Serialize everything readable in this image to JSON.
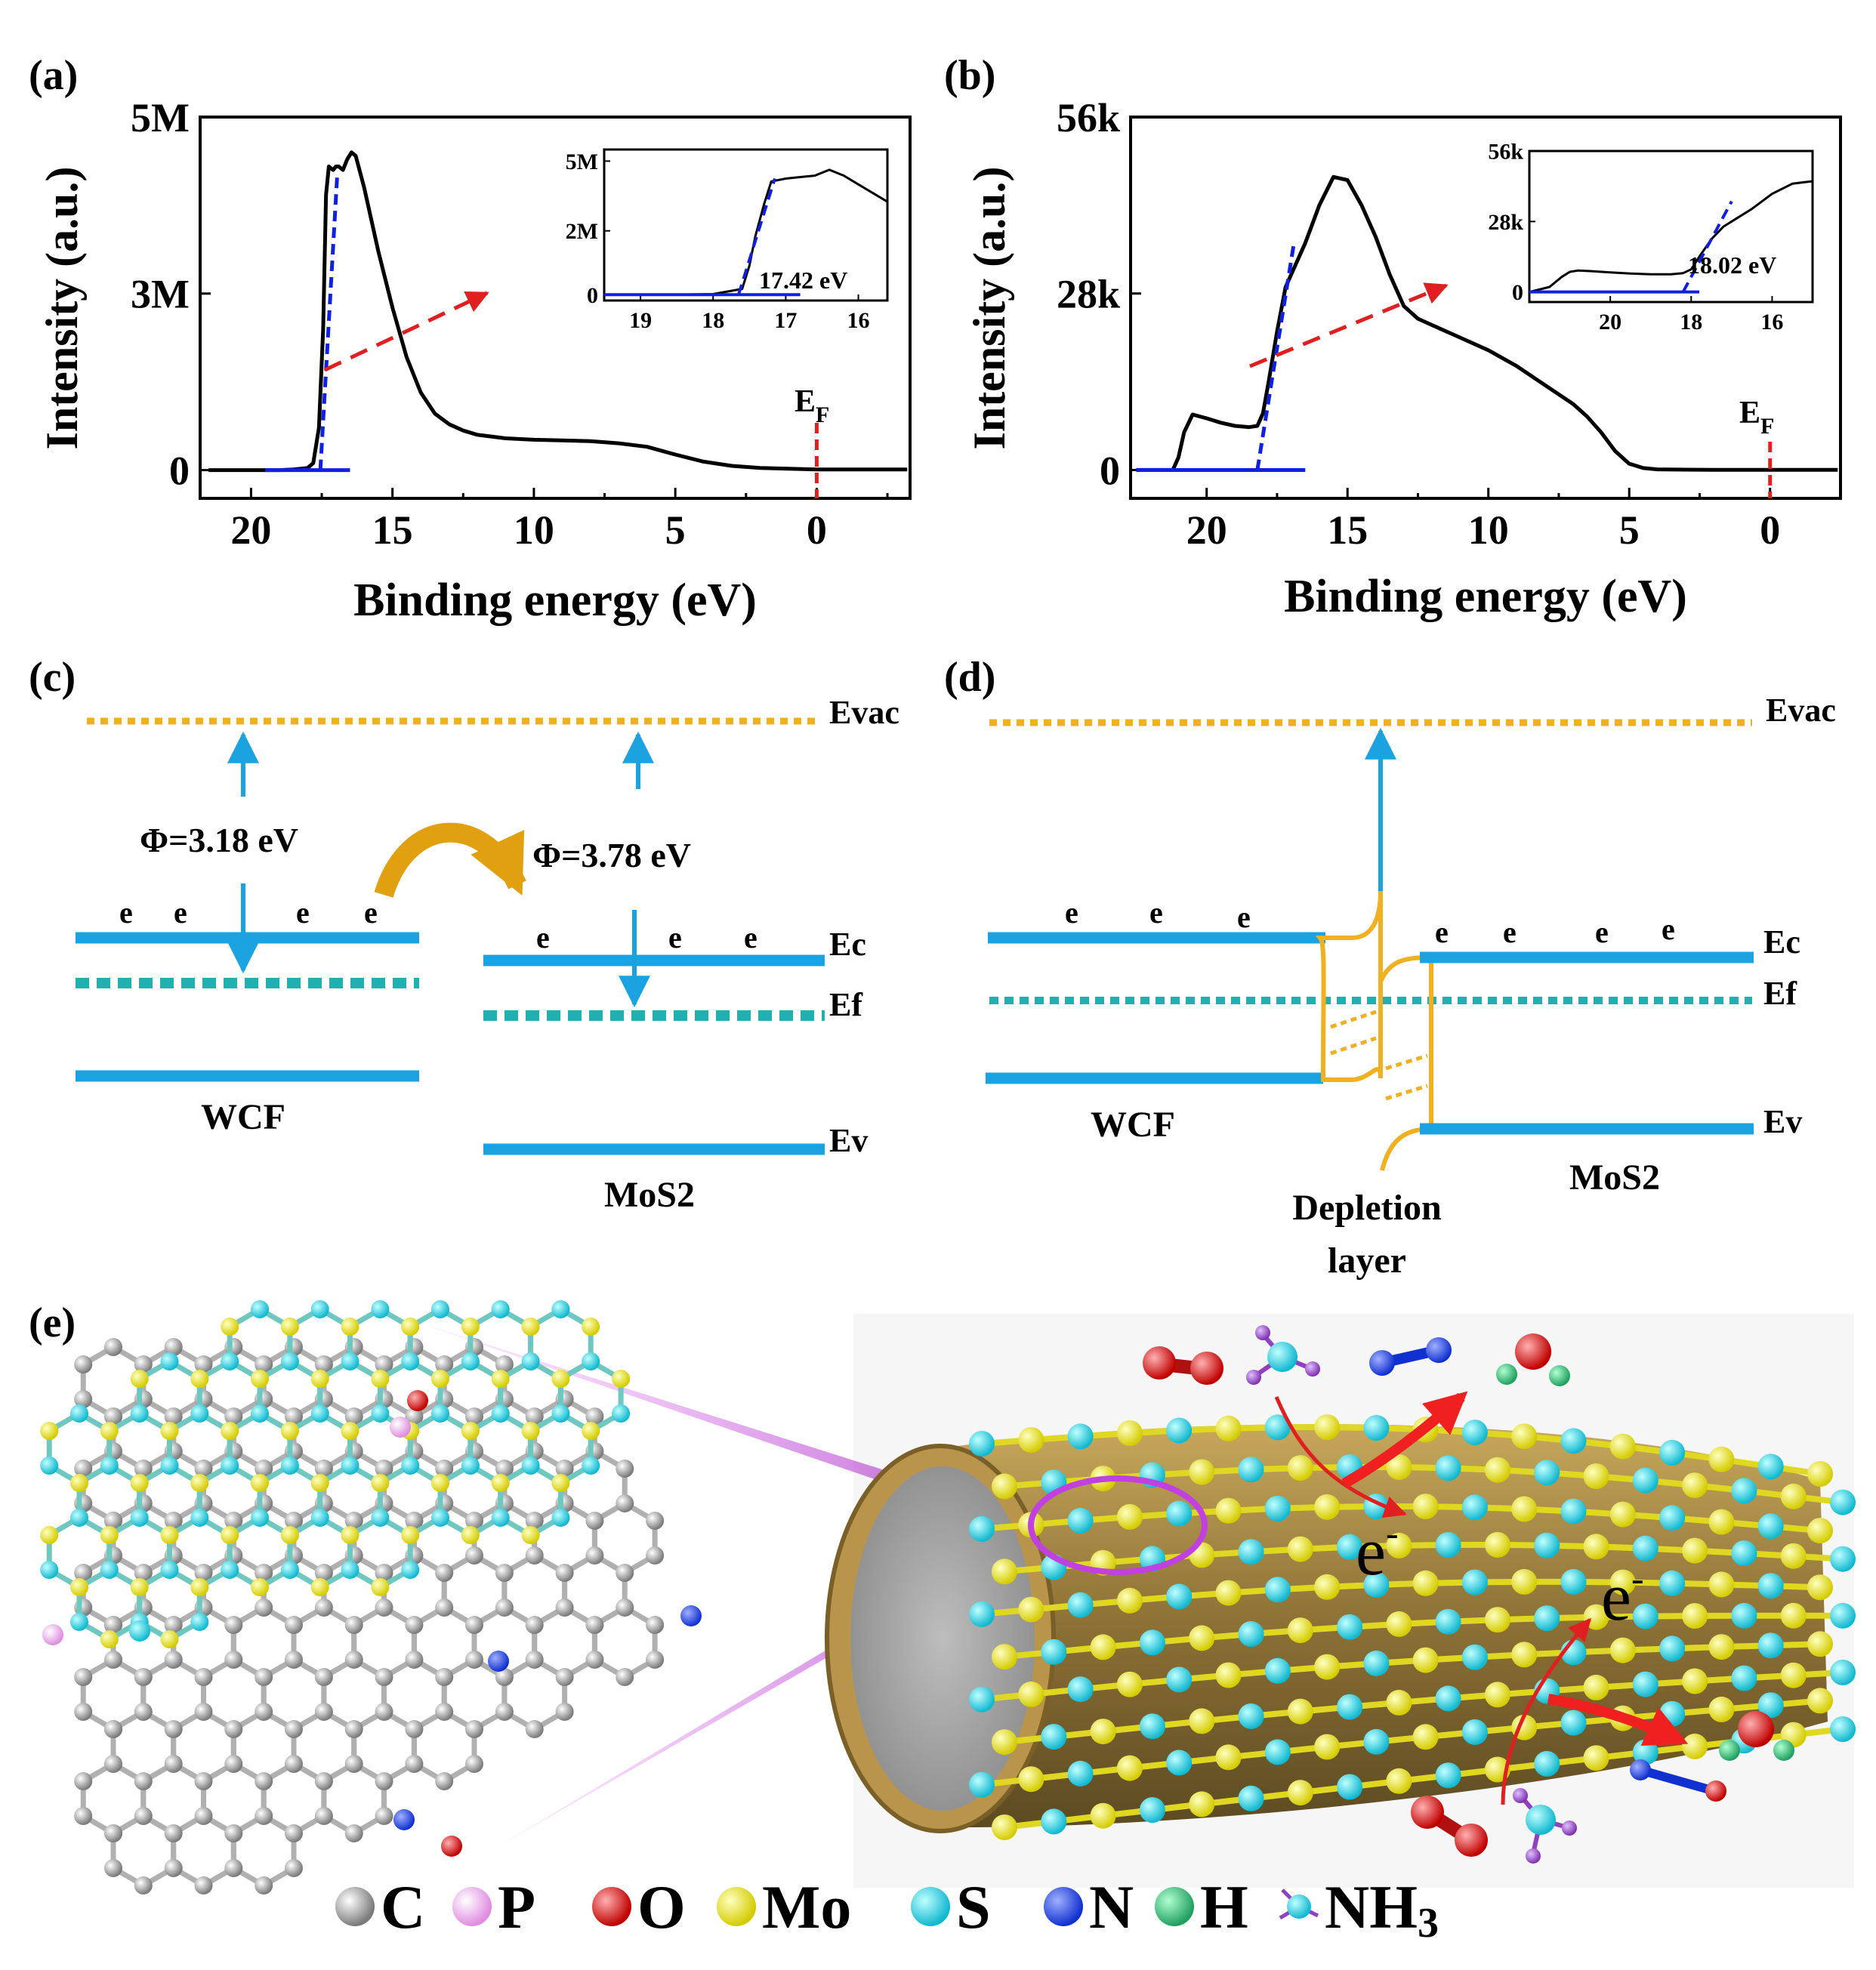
{
  "panels": {
    "a": "(a)",
    "b": "(b)",
    "c": "(c)",
    "d": "(d)",
    "e": "(e)"
  },
  "chart_data": [
    {
      "type": "line",
      "panel": "a",
      "xlabel": "Binding energy (eV)",
      "ylabel": "Intensity (a.u.)",
      "xlim": [
        21.8,
        -3.3
      ],
      "ylim": [
        -0.4,
        5
      ],
      "x_ticks": [
        20,
        15,
        10,
        5,
        0
      ],
      "y_ticks": [
        {
          "v": 0,
          "label": "0"
        },
        {
          "v": 2.5,
          "label": "3M"
        },
        {
          "v": 5,
          "label": "5M"
        }
      ],
      "fermi_label_main": "E",
      "fermi_label_sub": "F",
      "series": [
        {
          "x": [
            21.5,
            20,
            19,
            18.5,
            18,
            17.8,
            17.6,
            17.45,
            17.35,
            17.25,
            17.1,
            17.0,
            16.9,
            16.75,
            16.6,
            16.45,
            16.3,
            16.0,
            15.5,
            15.0,
            14.5,
            14.0,
            13.5,
            13.0,
            12.5,
            12.0,
            11.0,
            10.0,
            9.0,
            8.0,
            7.0,
            6.0,
            5.0,
            4.0,
            3.0,
            2.0,
            1.0,
            0,
            -1,
            -2,
            -3.2
          ],
          "y": [
            0,
            0,
            0,
            0.01,
            0.03,
            0.1,
            0.6,
            2.0,
            3.9,
            4.3,
            4.25,
            4.3,
            4.3,
            4.25,
            4.4,
            4.5,
            4.45,
            4.0,
            3.1,
            2.3,
            1.6,
            1.1,
            0.8,
            0.65,
            0.56,
            0.5,
            0.45,
            0.43,
            0.42,
            0.41,
            0.38,
            0.33,
            0.22,
            0.12,
            0.06,
            0.03,
            0.02,
            0.01,
            0.01,
            0.01,
            0.01
          ]
        }
      ],
      "fit_line": {
        "x": [
          17.55,
          16.95
        ],
        "y": [
          0,
          4.2
        ]
      },
      "baseline": {
        "x": [
          19.5,
          16.5
        ],
        "y": [
          0,
          0
        ]
      },
      "inset": {
        "xlim": [
          19.5,
          15.6
        ],
        "ylim": [
          -0.2,
          5
        ],
        "x_ticks": [
          19,
          18,
          17,
          16
        ],
        "y_ticks": [
          {
            "v": 0,
            "label": "0"
          },
          {
            "v": 2.2,
            "label": "2M"
          },
          {
            "v": 4.6,
            "label": "5M"
          }
        ],
        "annotation": "17.42 eV",
        "series": {
          "x": [
            19.5,
            19,
            18.5,
            18.0,
            17.6,
            17.5,
            17.42,
            17.3,
            17.2,
            17.0,
            16.8,
            16.6,
            16.4,
            16.2,
            16.0,
            15.8,
            15.6
          ],
          "y": [
            0,
            0,
            0,
            0.02,
            0.2,
            1.0,
            2.0,
            3.1,
            3.9,
            4.0,
            4.05,
            4.1,
            4.3,
            4.1,
            3.8,
            3.5,
            3.2
          ]
        },
        "fit_line": {
          "x": [
            17.65,
            17.15
          ],
          "y": [
            0,
            4.0
          ]
        },
        "baseline": {
          "x": [
            19.5,
            16.8
          ],
          "y": [
            0,
            0
          ]
        }
      }
    },
    {
      "type": "line",
      "panel": "b",
      "xlabel": "Binding energy (eV)",
      "ylabel": "Intensity (a.u.)",
      "xlim": [
        22.7,
        -2.5
      ],
      "ylim": [
        -4.5,
        56
      ],
      "x_ticks": [
        20,
        15,
        10,
        5,
        0
      ],
      "y_ticks": [
        {
          "v": 0,
          "label": "0"
        },
        {
          "v": 28,
          "label": "28k"
        },
        {
          "v": 56,
          "label": "56k"
        }
      ],
      "fermi_label_main": "E",
      "fermi_label_sub": "F",
      "series": [
        {
          "x": [
            22.5,
            21.5,
            21.2,
            21.0,
            20.8,
            20.5,
            20.0,
            19.5,
            19.0,
            18.5,
            18.2,
            18.0,
            17.8,
            17.5,
            17.2,
            17.0,
            16.5,
            16.0,
            15.5,
            15.0,
            14.5,
            14.0,
            13.5,
            13.0,
            12.5,
            12.0,
            11.0,
            10.0,
            9.0,
            8.0,
            7.0,
            6.5,
            6.0,
            5.5,
            5.0,
            4.5,
            4.0,
            3.0,
            2.0,
            1.0,
            0,
            -1,
            -2.4
          ],
          "y": [
            0,
            0,
            0,
            2,
            6,
            8.8,
            8.2,
            7.5,
            7.0,
            6.8,
            7.0,
            9.0,
            14,
            22,
            29,
            31,
            36,
            42,
            46.5,
            46,
            42,
            37,
            31,
            26,
            24,
            23,
            21,
            19,
            16.5,
            13.5,
            10.5,
            8.5,
            6.0,
            3.0,
            1.0,
            0.3,
            0.1,
            0.05,
            0.03,
            0.02,
            0.02,
            0.02,
            0.02
          ]
        }
      ],
      "fit_line": {
        "x": [
          18.2,
          16.9
        ],
        "y": [
          0,
          36
        ]
      },
      "baseline": {
        "x": [
          22.5,
          16.5
        ],
        "y": [
          0,
          0
        ]
      },
      "inset": {
        "xlim": [
          22,
          15
        ],
        "ylim": [
          -4,
          56
        ],
        "x_ticks": [
          20,
          18,
          16
        ],
        "y_ticks": [
          {
            "v": 0,
            "label": "0"
          },
          {
            "v": 28,
            "label": "28k"
          },
          {
            "v": 56,
            "label": "56k"
          }
        ],
        "annotation": "18.02 eV",
        "series": {
          "x": [
            22,
            21.5,
            21.2,
            21.0,
            20.8,
            20.5,
            20.0,
            19.5,
            19.0,
            18.5,
            18.2,
            18.0,
            17.8,
            17.5,
            17.2,
            17.0,
            16.5,
            16.0,
            15.5,
            15.0
          ],
          "y": [
            0,
            2,
            6,
            8,
            8.5,
            8.3,
            7.8,
            7.3,
            7.0,
            7.0,
            7.5,
            9.0,
            14,
            21,
            26,
            28,
            33,
            39,
            43,
            44
          ]
        },
        "fit_line": {
          "x": [
            18.2,
            17.0
          ],
          "y": [
            0,
            36
          ]
        },
        "baseline": {
          "x": [
            22,
            17.8
          ],
          "y": [
            0,
            0
          ]
        }
      }
    }
  ],
  "band_c": {
    "evac": "Evac",
    "phi_wcf": "Φ=3.18 eV",
    "phi_mos2": "Φ=3.78 eV",
    "electron": "e",
    "ec": "Ec",
    "ef": "Ef",
    "ev": "Ev",
    "wcf": "WCF",
    "mos2": "MoS2"
  },
  "band_d": {
    "evac": "Evac",
    "electron": "e",
    "ec": "Ec",
    "ef": "Ef",
    "ev": "Ev",
    "wcf": "WCF",
    "mos2": "MoS2",
    "depletion_1": "Depletion",
    "depletion_2": "layer"
  },
  "scheme_e": {
    "electron_label": "e",
    "electron_sup": "-",
    "legend": [
      {
        "label": "C",
        "color": "#888888"
      },
      {
        "label": "P",
        "color": "#e8a0e8"
      },
      {
        "label": "O",
        "color": "#e02020"
      },
      {
        "label": "Mo",
        "color": "#e8e020"
      },
      {
        "label": "S",
        "color": "#30d0e0"
      },
      {
        "label": "N",
        "color": "#2040e0"
      },
      {
        "label": "H",
        "color": "#30c070"
      },
      {
        "label": "NH",
        "color": "#9040c0",
        "sub": "3"
      }
    ]
  },
  "colors": {
    "band_blue": "#1aa3e0",
    "evac_orange": "#f0b020",
    "fermi_teal": "#20b0b0",
    "fit_blue": "#1020e0",
    "arrow_red": "#e02020",
    "curve_black": "#000000",
    "tube_gold": "#9a7d3c"
  }
}
